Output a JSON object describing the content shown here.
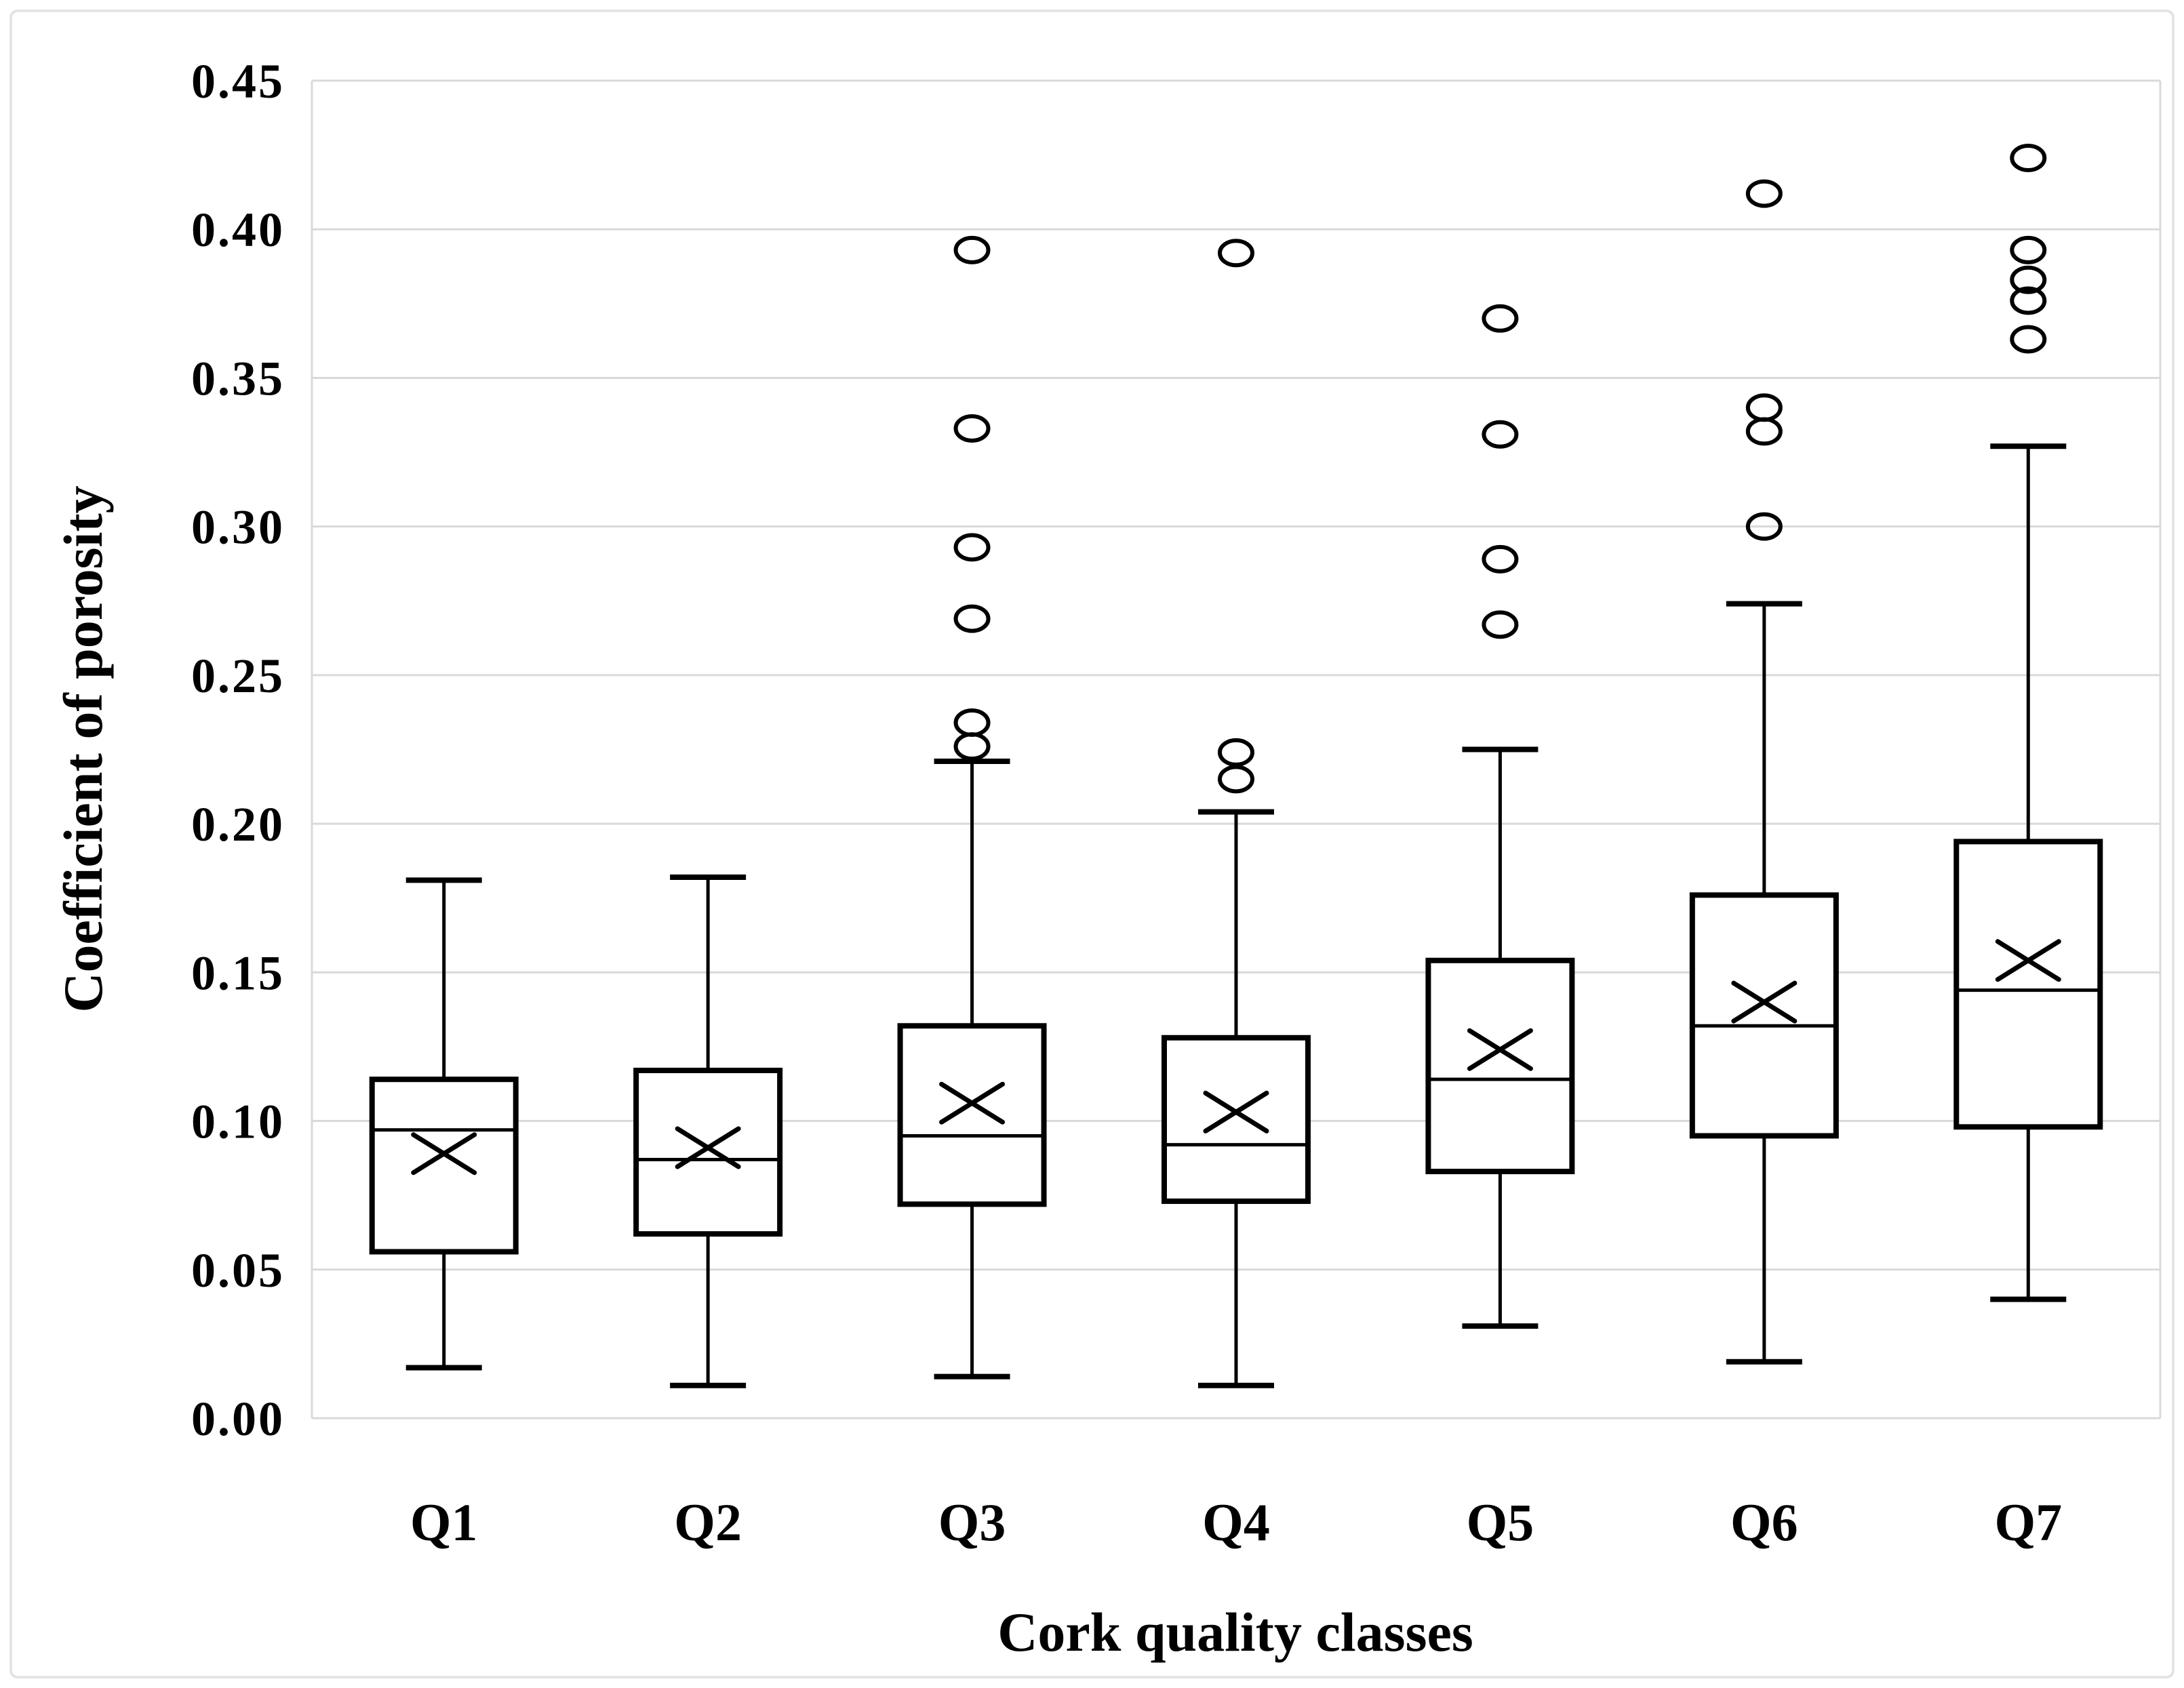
{
  "figure": {
    "background_color": "#ffffff",
    "border_color": "#e4e4e4",
    "plot_frame_color": "#d9d9d9",
    "gridline_color": "#d9d9d9",
    "box_stroke_color": "#000000",
    "box_fill_color": "#ffffff"
  },
  "chart_data": {
    "type": "box",
    "title": "",
    "xlabel": "Cork quality classes",
    "ylabel": "Coefficient of porosity",
    "categories": [
      "Q1",
      "Q2",
      "Q3",
      "Q4",
      "Q5",
      "Q6",
      "Q7"
    ],
    "ylim": [
      0.0,
      0.45
    ],
    "ytick_step": 0.05,
    "ytick_labels": [
      "0.00",
      "0.05",
      "0.10",
      "0.15",
      "0.20",
      "0.25",
      "0.30",
      "0.35",
      "0.40",
      "0.45"
    ],
    "grid": true,
    "legend": "none",
    "marker_notes": {
      "mean_marker": "x-cross",
      "outlier_marker": "open-circle"
    },
    "series": [
      {
        "name": "Q1",
        "whisker_low": 0.017,
        "q1": 0.056,
        "median": 0.097,
        "mean": 0.089,
        "q3": 0.114,
        "whisker_high": 0.181,
        "outliers": []
      },
      {
        "name": "Q2",
        "whisker_low": 0.011,
        "q1": 0.062,
        "median": 0.087,
        "mean": 0.091,
        "q3": 0.117,
        "whisker_high": 0.182,
        "outliers": []
      },
      {
        "name": "Q3",
        "whisker_low": 0.014,
        "q1": 0.072,
        "median": 0.095,
        "mean": 0.106,
        "q3": 0.132,
        "whisker_high": 0.221,
        "outliers": [
          0.226,
          0.234,
          0.269,
          0.293,
          0.333,
          0.393
        ]
      },
      {
        "name": "Q4",
        "whisker_low": 0.011,
        "q1": 0.073,
        "median": 0.092,
        "mean": 0.103,
        "q3": 0.128,
        "whisker_high": 0.204,
        "outliers": [
          0.215,
          0.224,
          0.392
        ]
      },
      {
        "name": "Q5",
        "whisker_low": 0.031,
        "q1": 0.083,
        "median": 0.114,
        "mean": 0.124,
        "q3": 0.154,
        "whisker_high": 0.225,
        "outliers": [
          0.267,
          0.289,
          0.331,
          0.37
        ]
      },
      {
        "name": "Q6",
        "whisker_low": 0.019,
        "q1": 0.095,
        "median": 0.132,
        "mean": 0.14,
        "q3": 0.176,
        "whisker_high": 0.274,
        "outliers": [
          0.3,
          0.332,
          0.34,
          0.412
        ]
      },
      {
        "name": "Q7",
        "whisker_low": 0.04,
        "q1": 0.098,
        "median": 0.144,
        "mean": 0.154,
        "q3": 0.194,
        "whisker_high": 0.327,
        "outliers": [
          0.363,
          0.376,
          0.383,
          0.393,
          0.424
        ]
      }
    ]
  }
}
